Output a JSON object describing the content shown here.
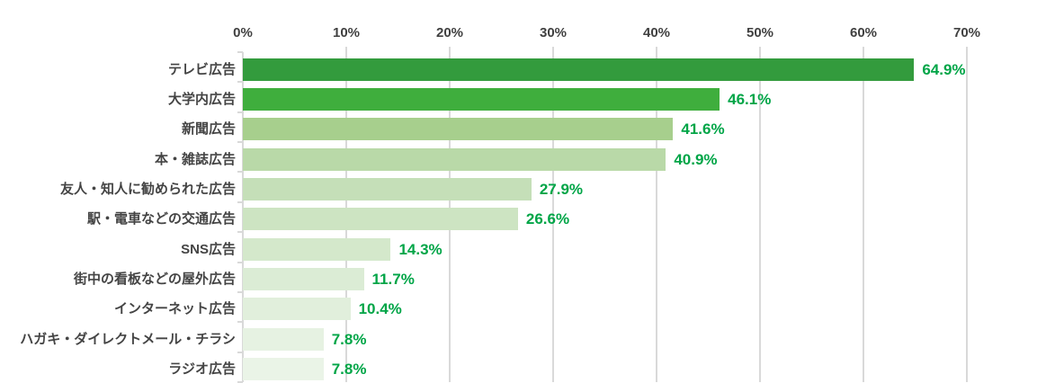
{
  "chart_data": {
    "type": "bar",
    "orientation": "horizontal",
    "title": "",
    "xlabel": "",
    "ylabel": "",
    "legend": "none",
    "grid": "vertical",
    "axis": {
      "position": "top",
      "tick_labels": [
        "0%",
        "10%",
        "20%",
        "30%",
        "40%",
        "50%",
        "60%",
        "70%"
      ],
      "tick_values": [
        0,
        10,
        20,
        30,
        40,
        50,
        60,
        70
      ],
      "max": 70
    },
    "categories": [
      "テレビ広告",
      "大学内広告",
      "新聞広告",
      "本・雑誌広告",
      "友人・知人に勧められた広告",
      "駅・電車などの交通広告",
      "SNS広告",
      "街中の看板などの屋外広告",
      "インターネット広告",
      "ハガキ・ダイレクトメール・チラシ",
      "ラジオ広告"
    ],
    "values": [
      64.9,
      46.1,
      41.6,
      40.9,
      27.9,
      26.6,
      14.3,
      11.7,
      10.4,
      7.8,
      7.8
    ],
    "value_labels": [
      "64.9%",
      "46.1%",
      "41.6%",
      "40.9%",
      "27.9%",
      "26.6%",
      "14.3%",
      "11.7%",
      "10.4%",
      "7.8%",
      "7.8%"
    ],
    "bar_colors": [
      "#339b3d",
      "#3fae3d",
      "#a7cf8d",
      "#b9d9a8",
      "#c5dfb8",
      "#cde4c2",
      "#d4e8cb",
      "#dbecd5",
      "#e1efdc",
      "#e6f2e2",
      "#eaf4e7"
    ],
    "colors": {
      "value_label": "#00a547",
      "axis_label": "#404040",
      "category_label": "#444444",
      "gridline": "#d9d9d9",
      "background": "#ffffff"
    }
  }
}
